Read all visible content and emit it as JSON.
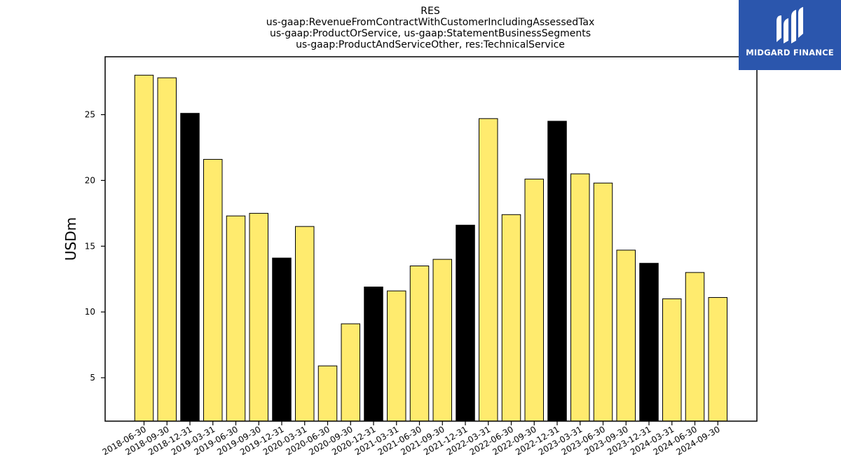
{
  "chart_data": {
    "type": "bar",
    "title": [
      "RES",
      "us-gaap:RevenueFromContractWithCustomerIncludingAssessedTax",
      "us-gaap:ProductOrService, us-gaap:StatementBusinessSegments",
      "us-gaap:ProductAndServiceOther, res:TechnicalService"
    ],
    "xlabel": "",
    "ylabel": "USDm",
    "ylim": [
      1.7,
      29.4
    ],
    "yticks": [
      5,
      10,
      15,
      20,
      25
    ],
    "categories": [
      "2018-06-30",
      "2018-09-30",
      "2018-12-31",
      "2019-03-31",
      "2019-06-30",
      "2019-09-30",
      "2019-12-31",
      "2020-03-31",
      "2020-06-30",
      "2020-09-30",
      "2020-12-31",
      "2021-03-31",
      "2021-06-30",
      "2021-09-30",
      "2021-12-31",
      "2022-03-31",
      "2022-06-30",
      "2022-09-30",
      "2022-12-31",
      "2023-03-31",
      "2023-06-30",
      "2023-09-30",
      "2023-12-31",
      "2024-03-31",
      "2024-06-30",
      "2024-09-30"
    ],
    "values": [
      28.0,
      27.8,
      25.1,
      21.6,
      17.3,
      17.5,
      14.1,
      16.5,
      5.9,
      9.1,
      11.9,
      11.6,
      13.5,
      14.0,
      16.6,
      24.7,
      17.4,
      20.1,
      24.5,
      20.5,
      19.8,
      14.7,
      13.7,
      11.0,
      13.0,
      11.1
    ],
    "colors": {
      "default": "#ffeb6e",
      "year_end": "#000000",
      "edge": "#000000"
    },
    "grid": false
  },
  "logo": {
    "text": "MIDGARD FINANCE",
    "background": "#2b56ad"
  }
}
